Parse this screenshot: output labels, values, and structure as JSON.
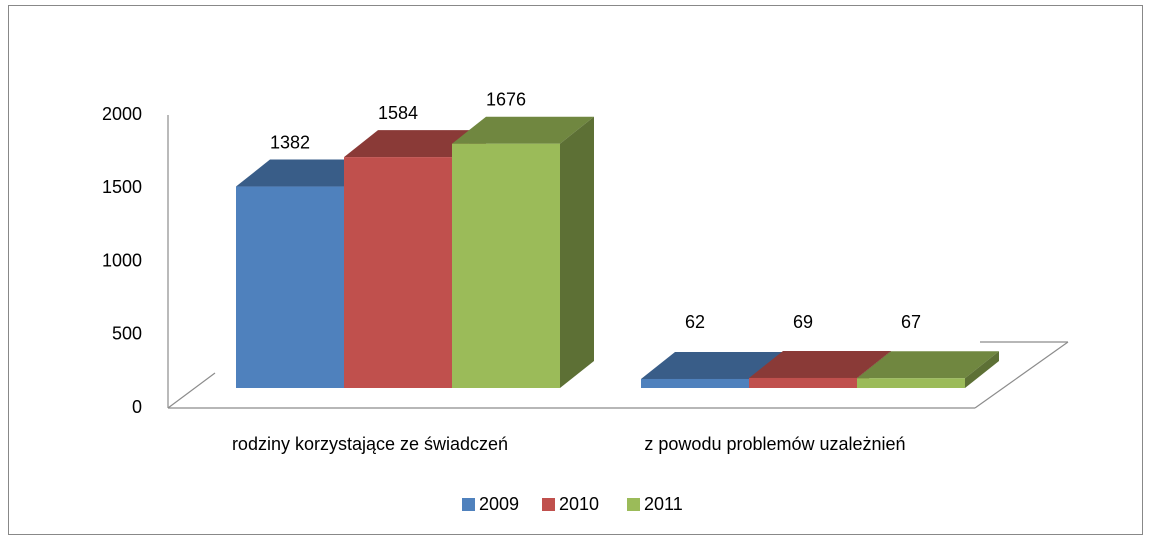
{
  "chart_data": {
    "type": "bar3d",
    "categories": [
      "rodziny korzystające ze świadczeń",
      "z powodu problemów uzależnień"
    ],
    "series": [
      {
        "name": "2009",
        "color": "#4f81bd",
        "values": [
          1382,
          62
        ]
      },
      {
        "name": "2010",
        "color": "#c0504d",
        "values": [
          1584,
          69
        ]
      },
      {
        "name": "2011",
        "color": "#9bbb59",
        "values": [
          1676,
          67
        ]
      }
    ],
    "ylim": [
      0,
      2000
    ],
    "yticks": [
      0,
      500,
      1000,
      1500,
      2000
    ],
    "legend": "bottom"
  }
}
